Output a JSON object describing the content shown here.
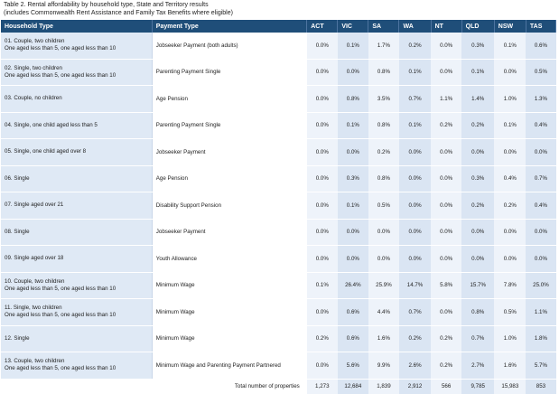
{
  "caption": {
    "line1": "Table 2. Rental affordability by household type, State and Territory results",
    "line2": "(includes Commonwealth Rent Assistance and Family Tax Benefits where eligible)"
  },
  "headers": [
    "Household Type",
    "Payment Type",
    "ACT",
    "VIC",
    "SA",
    "WA",
    "NT",
    "QLD",
    "NSW",
    "TAS"
  ],
  "rows": [
    {
      "h1": "01. Couple, two children",
      "h2": "One aged less than 5, one aged less than 10",
      "payment": "Jobseeker Payment (both adults)",
      "values": [
        "0.0%",
        "0.1%",
        "1.7%",
        "0.2%",
        "0.0%",
        "0.3%",
        "0.1%",
        "0.6%"
      ]
    },
    {
      "h1": "02. Single, two children",
      "h2": "One aged less than 5, one aged less than 10",
      "payment": "Parenting Payment Single",
      "values": [
        "0.0%",
        "0.0%",
        "0.8%",
        "0.1%",
        "0.0%",
        "0.1%",
        "0.0%",
        "0.5%"
      ]
    },
    {
      "h1": "03. Couple, no children",
      "h2": "",
      "payment": "Age Pension",
      "values": [
        "0.0%",
        "0.8%",
        "3.5%",
        "0.7%",
        "1.1%",
        "1.4%",
        "1.0%",
        "1.3%"
      ]
    },
    {
      "h1": "04. Single, one child aged less than 5",
      "h2": "",
      "payment": "Parenting Payment Single",
      "values": [
        "0.0%",
        "0.1%",
        "0.8%",
        "0.1%",
        "0.2%",
        "0.2%",
        "0.1%",
        "0.4%"
      ]
    },
    {
      "h1": "05. Single, one child aged over 8",
      "h2": "",
      "payment": "Jobseeker Payment",
      "values": [
        "0.0%",
        "0.0%",
        "0.2%",
        "0.0%",
        "0.0%",
        "0.0%",
        "0.0%",
        "0.0%"
      ]
    },
    {
      "h1": "06. Single",
      "h2": "",
      "payment": "Age Pension",
      "values": [
        "0.0%",
        "0.3%",
        "0.8%",
        "0.0%",
        "0.0%",
        "0.3%",
        "0.4%",
        "0.7%"
      ]
    },
    {
      "h1": "07. Single aged over 21",
      "h2": "",
      "payment": "Disability Support Pension",
      "values": [
        "0.0%",
        "0.1%",
        "0.5%",
        "0.0%",
        "0.0%",
        "0.2%",
        "0.2%",
        "0.4%"
      ]
    },
    {
      "h1": "08. Single",
      "h2": "",
      "payment": "Jobseeker Payment",
      "values": [
        "0.0%",
        "0.0%",
        "0.0%",
        "0.0%",
        "0.0%",
        "0.0%",
        "0.0%",
        "0.0%"
      ]
    },
    {
      "h1": "09. Single aged over 18",
      "h2": "",
      "payment": "Youth Allowance",
      "values": [
        "0.0%",
        "0.0%",
        "0.0%",
        "0.0%",
        "0.0%",
        "0.0%",
        "0.0%",
        "0.0%"
      ]
    },
    {
      "h1": "10. Couple, two children",
      "h2": "One aged less than 5, one aged less than 10",
      "payment": "Minimum Wage",
      "values": [
        "0.1%",
        "26.4%",
        "25.9%",
        "14.7%",
        "5.8%",
        "15.7%",
        "7.8%",
        "25.0%"
      ]
    },
    {
      "h1": "11. Single, two children",
      "h2": "One aged less than 5, one aged less than 10",
      "payment": "Minimum Wage",
      "values": [
        "0.0%",
        "0.6%",
        "4.4%",
        "0.7%",
        "0.0%",
        "0.8%",
        "0.5%",
        "1.1%"
      ]
    },
    {
      "h1": "12. Single",
      "h2": "",
      "payment": "Minimum Wage",
      "values": [
        "0.2%",
        "0.6%",
        "1.6%",
        "0.2%",
        "0.2%",
        "0.7%",
        "1.0%",
        "1.8%"
      ]
    },
    {
      "h1": "13. Couple, two children",
      "h2": "One aged less than 5, one aged less than 10",
      "payment": "Minimum Wage and Parenting Payment Partnered",
      "values": [
        "0.0%",
        "5.6%",
        "9.9%",
        "2.6%",
        "0.2%",
        "2.7%",
        "1.6%",
        "5.7%"
      ]
    }
  ],
  "total": {
    "label": "Total number of properties",
    "values": [
      "1,273",
      "12,684",
      "1,839",
      "2,912",
      "566",
      "9,785",
      "15,983",
      "853"
    ]
  }
}
